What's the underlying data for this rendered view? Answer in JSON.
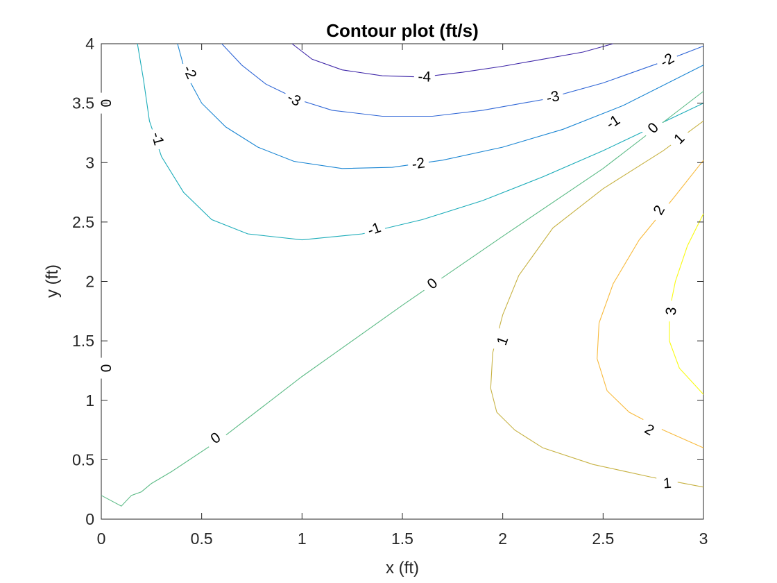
{
  "chart_data": {
    "type": "contour",
    "title": "Contour plot (ft/s)",
    "xlabel": "x (ft)",
    "ylabel": "y (ft)",
    "xlim": [
      0,
      3
    ],
    "ylim": [
      0,
      4
    ],
    "xticks": [
      0,
      0.5,
      1,
      1.5,
      2,
      2.5,
      3
    ],
    "xtick_labels": [
      "0",
      "0.5",
      "1",
      "1.5",
      "2",
      "2.5",
      "3"
    ],
    "yticks": [
      0,
      0.5,
      1,
      1.5,
      2,
      2.5,
      3,
      3.5,
      4
    ],
    "ytick_labels": [
      "0",
      "0.5",
      "1",
      "1.5",
      "2",
      "2.5",
      "3",
      "3.5",
      "4"
    ],
    "grid": false,
    "levels": [
      {
        "level": -4,
        "color": "#3e26a8",
        "lines": [
          [
            [
              0.95,
              4.0
            ],
            [
              1.05,
              3.87
            ],
            [
              1.2,
              3.78
            ],
            [
              1.4,
              3.73
            ],
            [
              1.6,
              3.72
            ],
            [
              1.8,
              3.76
            ],
            [
              2.0,
              3.81
            ],
            [
              2.2,
              3.87
            ],
            [
              2.4,
              3.93
            ],
            [
              2.55,
              4.0
            ]
          ]
        ],
        "labels": [
          {
            "text": "-4",
            "x": 1.61,
            "y": 3.72,
            "angle": 2
          }
        ]
      },
      {
        "level": -3,
        "color": "#2f66d6",
        "lines": [
          [
            [
              0.6,
              4.0
            ],
            [
              0.7,
              3.82
            ],
            [
              0.82,
              3.66
            ],
            [
              0.98,
              3.53
            ],
            [
              1.15,
              3.44
            ],
            [
              1.4,
              3.39
            ],
            [
              1.65,
              3.39
            ],
            [
              1.9,
              3.44
            ],
            [
              2.2,
              3.53
            ],
            [
              2.5,
              3.67
            ],
            [
              2.8,
              3.85
            ],
            [
              3.0,
              3.98
            ]
          ]
        ],
        "labels": [
          {
            "text": "-3",
            "x": 0.96,
            "y": 3.53,
            "angle": 28
          },
          {
            "text": "-3",
            "x": 2.25,
            "y": 3.55,
            "angle": -14
          }
        ]
      },
      {
        "level": -2,
        "color": "#1985d3",
        "lines": [
          [
            [
              0.38,
              4.0
            ],
            [
              0.42,
              3.75
            ],
            [
              0.5,
              3.5
            ],
            [
              0.62,
              3.3
            ],
            [
              0.78,
              3.13
            ],
            [
              0.96,
              3.01
            ],
            [
              1.2,
              2.95
            ],
            [
              1.45,
              2.96
            ],
            [
              1.7,
              3.02
            ],
            [
              2.0,
              3.13
            ],
            [
              2.3,
              3.28
            ],
            [
              2.6,
              3.48
            ],
            [
              3.0,
              3.82
            ]
          ]
        ],
        "labels": [
          {
            "text": "-2",
            "x": 0.44,
            "y": 3.76,
            "angle": 65
          },
          {
            "text": "-2",
            "x": 1.58,
            "y": 2.99,
            "angle": -8
          },
          {
            "text": "-2",
            "x": 2.82,
            "y": 3.86,
            "angle": -30
          }
        ]
      },
      {
        "level": -1,
        "color": "#1bacb9",
        "lines": [
          [
            [
              0.18,
              4.0
            ],
            [
              0.21,
              3.7
            ],
            [
              0.24,
              3.35
            ],
            [
              0.3,
              3.05
            ],
            [
              0.41,
              2.75
            ],
            [
              0.55,
              2.52
            ],
            [
              0.73,
              2.4
            ],
            [
              1.0,
              2.35
            ],
            [
              1.3,
              2.4
            ],
            [
              1.6,
              2.52
            ],
            [
              1.9,
              2.68
            ],
            [
              2.2,
              2.88
            ],
            [
              2.5,
              3.1
            ],
            [
              3.0,
              3.5
            ]
          ]
        ],
        "labels": [
          {
            "text": "-1",
            "x": 0.28,
            "y": 3.2,
            "angle": 75
          },
          {
            "text": "-1",
            "x": 1.36,
            "y": 2.44,
            "angle": -20
          },
          {
            "text": "-1",
            "x": 2.55,
            "y": 3.34,
            "angle": -33
          }
        ]
      },
      {
        "level": 0,
        "color": "#5cbb86",
        "lines": [
          [
            [
              0.0,
              0.2
            ],
            [
              0.1,
              0.11
            ],
            [
              0.15,
              0.2
            ],
            [
              0.2,
              0.23
            ],
            [
              0.25,
              0.3
            ],
            [
              0.35,
              0.4
            ],
            [
              0.6,
              0.68
            ],
            [
              1.0,
              1.2
            ],
            [
              1.5,
              1.8
            ],
            [
              2.0,
              2.38
            ],
            [
              2.5,
              2.95
            ],
            [
              3.0,
              3.6
            ]
          ]
        ],
        "labels": [
          {
            "text": "0",
            "x": 0.57,
            "y": 0.68,
            "angle": -35
          },
          {
            "text": "0",
            "x": 1.65,
            "y": 1.98,
            "angle": -40
          },
          {
            "text": "0",
            "x": 2.75,
            "y": 3.29,
            "angle": -45
          },
          {
            "text": "0",
            "x": 0.02,
            "y": 3.5,
            "angle": 90
          },
          {
            "text": "0",
            "x": 0.02,
            "y": 1.27,
            "angle": 90
          }
        ]
      },
      {
        "level": 1,
        "color": "#c7b243",
        "lines": [
          [
            [
              3.0,
              3.35
            ],
            [
              2.8,
              3.1
            ],
            [
              2.5,
              2.78
            ],
            [
              2.25,
              2.45
            ],
            [
              2.08,
              2.05
            ],
            [
              2.0,
              1.72
            ],
            [
              1.95,
              1.4
            ],
            [
              1.94,
              1.1
            ],
            [
              1.97,
              0.9
            ],
            [
              2.06,
              0.75
            ],
            [
              2.2,
              0.6
            ],
            [
              2.45,
              0.46
            ],
            [
              2.75,
              0.35
            ],
            [
              3.0,
              0.27
            ]
          ]
        ],
        "labels": [
          {
            "text": "1",
            "x": 2.88,
            "y": 3.2,
            "angle": -45
          },
          {
            "text": "1",
            "x": 2.0,
            "y": 1.5,
            "angle": -70
          },
          {
            "text": "1",
            "x": 2.82,
            "y": 0.3,
            "angle": -5
          }
        ]
      },
      {
        "level": 2,
        "color": "#f8ba3c",
        "lines": [
          [
            [
              3.0,
              3.02
            ],
            [
              2.85,
              2.7
            ],
            [
              2.68,
              2.35
            ],
            [
              2.55,
              1.98
            ],
            [
              2.48,
              1.65
            ],
            [
              2.47,
              1.35
            ],
            [
              2.52,
              1.08
            ],
            [
              2.63,
              0.9
            ],
            [
              2.8,
              0.75
            ],
            [
              3.0,
              0.6
            ]
          ]
        ],
        "labels": [
          {
            "text": "2",
            "x": 2.78,
            "y": 2.6,
            "angle": -60
          },
          {
            "text": "2",
            "x": 2.73,
            "y": 0.75,
            "angle": 30
          }
        ]
      },
      {
        "level": 3,
        "color": "#f9fb0e",
        "lines": [
          [
            [
              3.0,
              2.57
            ],
            [
              2.92,
              2.3
            ],
            [
              2.86,
              2.0
            ],
            [
              2.83,
              1.75
            ],
            [
              2.83,
              1.5
            ],
            [
              2.88,
              1.27
            ],
            [
              3.0,
              1.05
            ]
          ]
        ],
        "labels": [
          {
            "text": "3",
            "x": 2.84,
            "y": 1.75,
            "angle": -85
          }
        ]
      }
    ]
  }
}
